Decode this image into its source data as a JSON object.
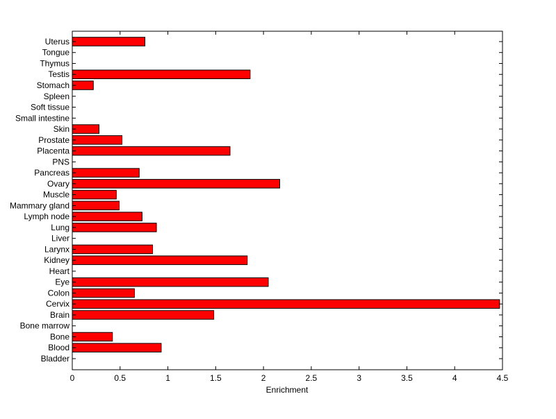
{
  "chart_data": {
    "type": "bar",
    "orientation": "horizontal",
    "title": "",
    "xlabel": "Enrichment",
    "ylabel": "",
    "xlim": [
      0,
      4.5
    ],
    "xticks": [
      "0",
      "0.5",
      "1",
      "1.5",
      "2",
      "2.5",
      "3",
      "3.5",
      "4",
      "4.5"
    ],
    "grid": false,
    "bar_color": "#ff0000",
    "bar_edge_color": "#000000",
    "categories": [
      "Bladder",
      "Blood",
      "Bone",
      "Bone marrow",
      "Brain",
      "Cervix",
      "Colon",
      "Eye",
      "Heart",
      "Kidney",
      "Larynx",
      "Liver",
      "Lung",
      "Lymph node",
      "Mammary gland",
      "Muscle",
      "Ovary",
      "Pancreas",
      "PNS",
      "Placenta",
      "Prostate",
      "Skin",
      "Small intestine",
      "Soft tissue",
      "Spleen",
      "Stomach",
      "Testis",
      "Thymus",
      "Tongue",
      "Uterus"
    ],
    "values": [
      0,
      0.93,
      0.42,
      0,
      1.48,
      4.47,
      0.65,
      2.05,
      0,
      1.83,
      0.84,
      0,
      0.88,
      0.73,
      0.49,
      0.46,
      2.17,
      0.7,
      0,
      1.65,
      0.52,
      0.28,
      0,
      0,
      0,
      0.22,
      1.86,
      0,
      0,
      0.76
    ]
  }
}
